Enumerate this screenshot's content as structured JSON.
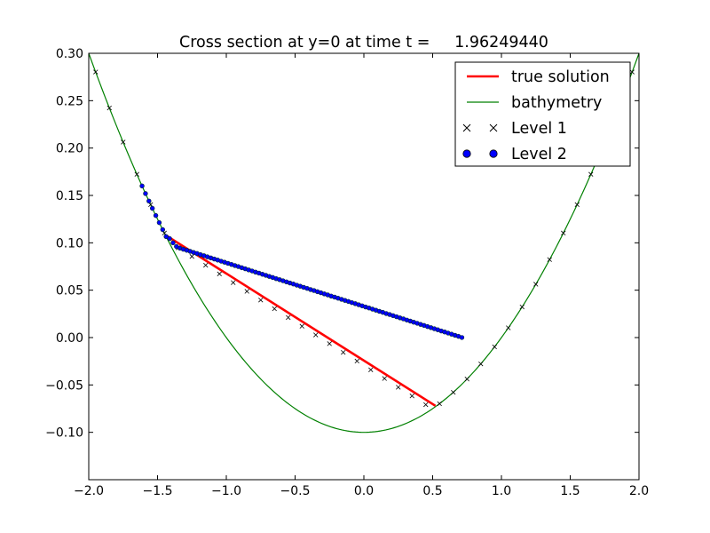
{
  "chart_data": {
    "type": "line",
    "title": "Cross section at y=0 at time t =     1.96249440",
    "xlabel": "",
    "ylabel": "",
    "xlim": [
      -2.0,
      2.0
    ],
    "ylim": [
      -0.15,
      0.3
    ],
    "xticks": [
      -2.0,
      -1.5,
      -1.0,
      -0.5,
      0.0,
      0.5,
      1.0,
      1.5,
      2.0
    ],
    "xtick_labels": [
      "−2.0",
      "−1.5",
      "−1.0",
      "−0.5",
      "0.0",
      "0.5",
      "1.0",
      "1.5",
      "2.0"
    ],
    "yticks": [
      -0.1,
      -0.05,
      0.0,
      0.05,
      0.1,
      0.15,
      0.2,
      0.25,
      0.3
    ],
    "ytick_labels": [
      "−0.10",
      "−0.05",
      "0.00",
      "0.05",
      "0.10",
      "0.15",
      "0.20",
      "0.25",
      "0.30"
    ],
    "grid": false,
    "legend": "top-right",
    "bathymetry": {
      "x_range": [
        -2.0,
        2.0
      ],
      "formula": "0.1*x^2 - 0.1"
    },
    "series": [
      {
        "name": "true solution",
        "style": "line",
        "color": "#ff0000",
        "x": [
          -1.44,
          0.52
        ],
        "y": [
          0.108,
          -0.072
        ]
      },
      {
        "name": "bathymetry",
        "style": "line",
        "color": "#008000",
        "x": [
          -2.0,
          -1.5,
          -1.0,
          -0.5,
          0.0,
          0.5,
          1.0,
          1.5,
          2.0
        ],
        "y": [
          0.3,
          0.125,
          0.0,
          -0.075,
          -0.1,
          -0.075,
          0.0,
          0.125,
          0.3
        ]
      },
      {
        "name": "Level 1",
        "style": "marker-x",
        "color": "#000000",
        "x": [
          -1.95,
          -1.85,
          -1.75,
          -1.65,
          -1.55,
          -1.45,
          -1.35,
          -1.25,
          -1.15,
          -1.05,
          -0.95,
          -0.85,
          -0.75,
          -0.65,
          -0.55,
          -0.45,
          -0.35,
          -0.25,
          -0.15,
          -0.05,
          0.05,
          0.15,
          0.25,
          0.35,
          0.45,
          0.55,
          0.65,
          0.75,
          0.85,
          0.95,
          1.05,
          1.15,
          1.25,
          1.35,
          1.45,
          1.55,
          1.65,
          1.75,
          1.85,
          1.95
        ],
        "y": [
          0.2803,
          0.2423,
          0.2063,
          0.1723,
          0.1403,
          0.1103,
          0.0948,
          0.0856,
          0.0764,
          0.0672,
          0.058,
          0.0488,
          0.0396,
          0.0304,
          0.0212,
          0.012,
          0.0028,
          -0.0064,
          -0.0156,
          -0.0248,
          -0.034,
          -0.0432,
          -0.0524,
          -0.0616,
          -0.0708,
          -0.0698,
          -0.0578,
          -0.0438,
          -0.0278,
          -0.0098,
          0.0103,
          0.0323,
          0.0563,
          0.0823,
          0.1103,
          0.1403,
          0.1723,
          0.2063,
          0.2423,
          0.2803
        ]
      },
      {
        "name": "Level 2",
        "style": "marker-dot",
        "color": "#0000ff",
        "x": [
          -1.6125,
          -1.5875,
          -1.5625,
          -1.5375,
          -1.5125,
          -1.4875,
          -1.4625,
          -1.4375,
          -1.4125,
          -1.3875,
          -1.3625,
          -1.3375,
          -1.3125,
          -1.2875,
          -1.2625,
          -1.2375,
          -1.2125,
          -1.1875,
          -1.1625,
          -1.1375,
          -1.1125,
          -1.0875,
          -1.0625,
          -1.0375,
          -1.0125,
          -0.9875,
          -0.9625,
          -0.9375,
          -0.9125,
          -0.8875,
          -0.8625,
          -0.8375,
          -0.8125,
          -0.7875,
          -0.7625,
          -0.7375,
          -0.7125,
          -0.6875,
          -0.6625,
          -0.6375,
          -0.6125,
          -0.5875,
          -0.5625,
          -0.5375,
          -0.5125,
          -0.4875,
          -0.4625,
          -0.4375,
          -0.4125,
          -0.3875,
          -0.3625,
          -0.3375,
          -0.3125,
          -0.2875,
          -0.2625,
          -0.2375,
          -0.2125,
          -0.1875,
          -0.1625,
          -0.1375,
          -0.1125,
          -0.0875,
          -0.0625,
          -0.0375,
          -0.0125,
          0.0125,
          0.0375,
          0.0625,
          0.0875,
          0.1125,
          0.1375,
          0.1625,
          0.1875,
          0.2125,
          0.2375,
          0.2625,
          0.2875,
          0.3125,
          0.3375,
          0.3625,
          0.3875,
          0.4125,
          0.4375,
          0.4625,
          0.4875,
          0.5125,
          0.5375,
          0.5625,
          0.5875,
          0.6125,
          0.6375,
          0.6625,
          0.6875,
          0.7125
        ],
        "y": [
          0.16,
          0.152,
          0.1441,
          0.1364,
          0.1288,
          0.1213,
          0.1139,
          0.1066,
          0.1045,
          0.1,
          0.0961,
          0.0944,
          0.0932,
          0.0921,
          0.091,
          0.0898,
          0.0887,
          0.0875,
          0.0864,
          0.0852,
          0.0841,
          0.0829,
          0.0818,
          0.0806,
          0.0795,
          0.0783,
          0.0772,
          0.076,
          0.0749,
          0.0737,
          0.0726,
          0.0714,
          0.0703,
          0.0691,
          0.068,
          0.0668,
          0.0657,
          0.0645,
          0.0634,
          0.0622,
          0.0611,
          0.0599,
          0.0588,
          0.0576,
          0.0565,
          0.0553,
          0.0542,
          0.053,
          0.0519,
          0.0507,
          0.0496,
          0.0484,
          0.0473,
          0.0461,
          0.045,
          0.0438,
          0.0427,
          0.0415,
          0.0404,
          0.0392,
          0.0381,
          0.0369,
          0.0358,
          0.0346,
          0.0335,
          0.0323,
          0.0312,
          0.03,
          0.0289,
          0.0277,
          0.0266,
          0.0254,
          0.0243,
          0.0231,
          0.022,
          0.0208,
          0.0197,
          0.0185,
          0.0174,
          0.0162,
          0.0151,
          0.0139,
          0.0128,
          0.0116,
          0.0105,
          0.0093,
          0.0082,
          0.007,
          0.0059,
          0.0047,
          0.0036,
          0.0024,
          0.0013,
          0.0001
        ]
      }
    ]
  }
}
